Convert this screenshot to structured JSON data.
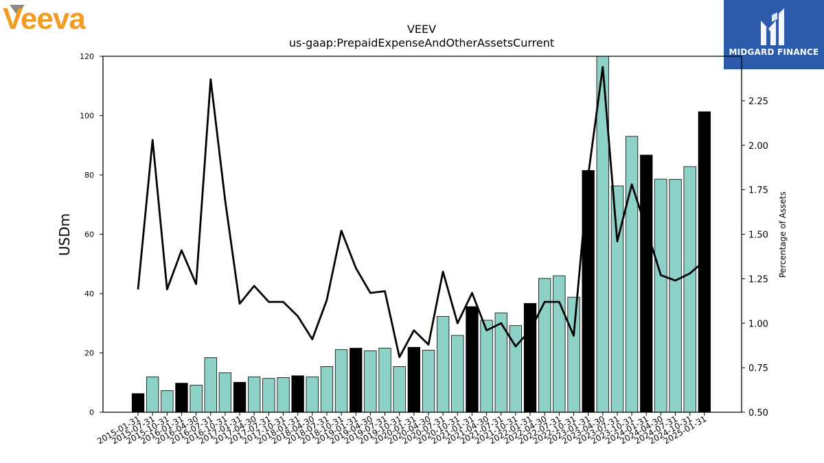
{
  "logos": {
    "left_brand": "Veeva",
    "right_brand": "MIDGARD FINANCE"
  },
  "colors": {
    "bar_quarter": "#8ed1c6",
    "bar_annual": "#000000",
    "line": "#000000",
    "veeva_orange": "#f39c1f",
    "midgard_blue": "#2d5bab"
  },
  "chart_data": {
    "type": "bar",
    "title": "VEEV",
    "subtitle": "us-gaap:PrepaidExpenseAndOtherAssetsCurrent",
    "ylabel": "USDm",
    "y2label": "Percentage of Assets",
    "ylim": [
      0,
      120
    ],
    "y2lim": [
      0.5,
      2.5
    ],
    "yticks": [
      "0",
      "20",
      "40",
      "60",
      "80",
      "100",
      "120"
    ],
    "y2ticks": [
      "0.50",
      "0.75",
      "1.00",
      "1.25",
      "1.50",
      "1.75",
      "2.00",
      "2.25"
    ],
    "categories": [
      "2015-01-31",
      "2015-07-31",
      "2015-10-31",
      "2016-01-31",
      "2016-04-30",
      "2016-07-31",
      "2016-10-31",
      "2017-01-31",
      "2017-04-30",
      "2017-07-31",
      "2017-10-31",
      "2018-01-31",
      "2018-04-30",
      "2018-07-31",
      "2018-10-31",
      "2019-01-31",
      "2019-04-30",
      "2019-07-31",
      "2019-10-31",
      "2020-01-31",
      "2020-04-30",
      "2020-07-31",
      "2020-10-31",
      "2021-01-31",
      "2021-04-30",
      "2021-07-31",
      "2021-10-31",
      "2022-01-31",
      "2022-04-30",
      "2022-07-31",
      "2022-10-31",
      "2023-01-31",
      "2023-04-30",
      "2023-07-31",
      "2023-10-31",
      "2024-01-31",
      "2024-04-30",
      "2024-07-31",
      "2024-10-31",
      "2025-01-31"
    ],
    "series": [
      {
        "kind": "bar",
        "values": [
          6.3,
          11.9,
          7.3,
          9.8,
          9.1,
          18.4,
          13.3,
          10.1,
          11.9,
          11.4,
          11.7,
          12.3,
          11.9,
          15.4,
          21.1,
          21.6,
          20.7,
          21.6,
          15.4,
          21.9,
          20.9,
          32.3,
          25.9,
          35.6,
          31.0,
          33.5,
          29.2,
          36.7,
          45.1,
          46.0,
          38.8,
          81.5,
          120.5,
          76.3,
          93.0,
          86.7,
          78.6,
          78.5,
          82.8,
          101.3
        ],
        "annual": [
          true,
          false,
          false,
          true,
          false,
          false,
          false,
          true,
          false,
          false,
          false,
          true,
          false,
          false,
          false,
          true,
          false,
          false,
          false,
          true,
          false,
          false,
          false,
          true,
          false,
          false,
          false,
          true,
          false,
          false,
          false,
          true,
          false,
          false,
          false,
          true,
          false,
          false,
          false,
          true
        ]
      },
      {
        "kind": "line",
        "axis": "secondary",
        "values": [
          1.19,
          2.03,
          1.19,
          1.41,
          1.22,
          2.37,
          1.69,
          1.11,
          1.21,
          1.12,
          1.12,
          1.04,
          0.91,
          1.13,
          1.52,
          1.31,
          1.17,
          1.18,
          0.81,
          0.96,
          0.88,
          1.29,
          1.0,
          1.17,
          0.96,
          1.0,
          0.87,
          0.96,
          1.12,
          1.12,
          0.93,
          1.83,
          2.44,
          1.46,
          1.78,
          1.53,
          1.27,
          1.24,
          1.28,
          1.35
        ]
      }
    ],
    "grid": false
  }
}
